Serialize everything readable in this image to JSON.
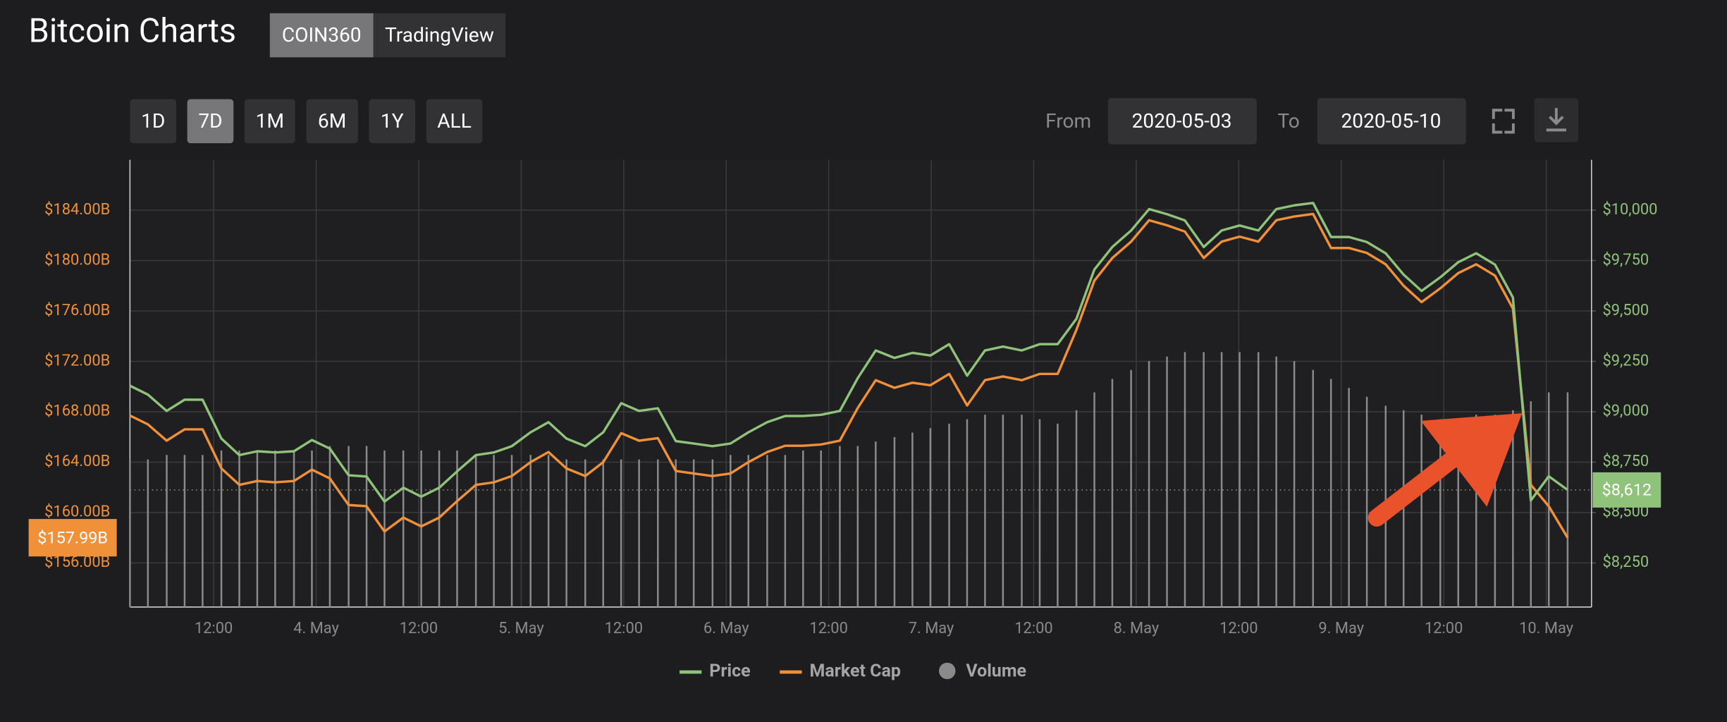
{
  "header": {
    "title": "Bitcoin Charts",
    "sources": [
      "COIN360",
      "TradingView"
    ],
    "active_source": 0
  },
  "ranges": {
    "options": [
      "1D",
      "7D",
      "1M",
      "6M",
      "1Y",
      "ALL"
    ],
    "active": 1
  },
  "date_range": {
    "from_label": "From",
    "from": "2020-05-03",
    "to_label": "To",
    "to": "2020-05-10"
  },
  "chart_data": {
    "type": "line",
    "x": [
      2.2,
      4.3,
      6.5,
      8.6,
      10.7,
      12.9,
      15.0,
      17.1,
      19.2,
      21.4,
      23.5,
      25.6,
      27.8,
      29.9,
      32.0,
      34.2,
      36.3,
      38.4,
      40.5,
      42.7,
      44.8,
      46.9,
      49.1,
      51.2,
      53.3,
      55.5,
      57.6,
      59.7,
      61.8,
      64.0,
      66.1,
      68.2,
      70.4,
      72.5,
      74.6,
      76.8,
      78.9,
      81.0,
      83.1,
      85.3,
      87.4,
      89.5,
      91.7,
      93.8,
      95.9,
      98.1,
      100.2,
      102.3,
      104.4,
      106.6,
      108.7,
      110.8,
      113.0,
      115.1,
      117.2,
      119.4,
      121.5,
      123.6,
      125.7,
      127.9,
      130.0,
      132.1,
      134.3,
      136.4,
      138.5,
      140.7,
      142.8,
      144.9,
      147.0,
      149.2,
      151.3,
      153.4,
      155.6,
      157.7,
      159.8,
      162.0,
      164.1,
      166.2,
      168.3,
      170.5
    ],
    "xlim": [
      2.2,
      173.3
    ],
    "xticks": [
      {
        "value": 12,
        "label": "12:00"
      },
      {
        "value": 24,
        "label": "4. May"
      },
      {
        "value": 36,
        "label": "12:00"
      },
      {
        "value": 48,
        "label": "5. May"
      },
      {
        "value": 60,
        "label": "12:00"
      },
      {
        "value": 72,
        "label": "6. May"
      },
      {
        "value": 84,
        "label": "12:00"
      },
      {
        "value": 96,
        "label": "7. May"
      },
      {
        "value": 108,
        "label": "12:00"
      },
      {
        "value": 120,
        "label": "8. May"
      },
      {
        "value": 132,
        "label": "12:00"
      },
      {
        "value": 144,
        "label": "9. May"
      },
      {
        "value": 156,
        "label": "12:00"
      },
      {
        "value": 168,
        "label": "10. May"
      }
    ],
    "ylim": [
      152.5,
      188
    ],
    "yticks": [
      {
        "value": 156,
        "label": "$156.00B"
      },
      {
        "value": 160,
        "label": "$160.00B"
      },
      {
        "value": 164,
        "label": "$164.00B"
      },
      {
        "value": 168,
        "label": "$168.00B"
      },
      {
        "value": 172,
        "label": "$172.00B"
      },
      {
        "value": 176,
        "label": "$176.00B"
      },
      {
        "value": 180,
        "label": "$180.00B"
      },
      {
        "value": 184,
        "label": "$184.00B"
      }
    ],
    "y2lim": [
      8031.25,
      10250
    ],
    "y2ticks": [
      {
        "value": 8250,
        "label": "$8,250"
      },
      {
        "value": 8500,
        "label": "$8,500"
      },
      {
        "value": 8750,
        "label": "$8,750"
      },
      {
        "value": 9000,
        "label": "$9,000"
      },
      {
        "value": 9250,
        "label": "$9,250"
      },
      {
        "value": 9500,
        "label": "$9,500"
      },
      {
        "value": 9750,
        "label": "$9,750"
      },
      {
        "value": 10000,
        "label": "$10,000"
      }
    ],
    "y3lim": [
      0,
      100
    ],
    "grid": true,
    "series": [
      {
        "name": "Price",
        "color": "#8fc27a",
        "axis": "y2",
        "last_label": "$8,612",
        "values": [
          9129,
          9085,
          9004,
          9060,
          9060,
          8867,
          8785,
          8804,
          8798,
          8804,
          8860,
          8817,
          8685,
          8679,
          8554,
          8623,
          8579,
          8623,
          8704,
          8785,
          8798,
          8829,
          8898,
          8948,
          8867,
          8829,
          8898,
          9042,
          9004,
          9017,
          8854,
          8842,
          8829,
          8842,
          8898,
          8948,
          8979,
          8979,
          8985,
          9004,
          9167,
          9304,
          9267,
          9292,
          9279,
          9335,
          9179,
          9304,
          9323,
          9304,
          9335,
          9335,
          9461,
          9705,
          9817,
          9899,
          10005,
          9980,
          9949,
          9817,
          9899,
          9924,
          9899,
          10005,
          10024,
          10036,
          9867,
          9867,
          9842,
          9786,
          9680,
          9599,
          9667,
          9742,
          9786,
          9730,
          9567,
          8560,
          8680,
          8612
        ]
      },
      {
        "name": "Market Cap",
        "color": "#f0913a",
        "last_label": "$157.99B",
        "values": [
          167.7,
          167.0,
          165.7,
          166.6,
          166.6,
          163.5,
          162.2,
          162.5,
          162.4,
          162.5,
          163.4,
          162.7,
          160.6,
          160.5,
          158.5,
          159.6,
          158.9,
          159.6,
          160.9,
          162.2,
          162.4,
          162.9,
          164.0,
          164.8,
          163.5,
          162.9,
          164.0,
          166.3,
          165.7,
          165.9,
          163.3,
          163.1,
          162.9,
          163.1,
          164.0,
          164.8,
          165.3,
          165.3,
          165.4,
          165.7,
          168.3,
          170.5,
          169.9,
          170.3,
          170.1,
          171.0,
          168.5,
          170.5,
          170.8,
          170.5,
          171.0,
          171.0,
          174.5,
          178.4,
          180.2,
          181.5,
          183.2,
          182.8,
          182.3,
          180.2,
          181.5,
          181.9,
          181.5,
          183.2,
          183.5,
          183.7,
          181.0,
          181.0,
          180.6,
          179.7,
          178.0,
          176.7,
          177.8,
          179.0,
          179.7,
          178.8,
          176.2,
          162.2,
          160.5,
          158.0
        ]
      },
      {
        "name": "Volume",
        "color": "#8a8a8a",
        "axis": "y3",
        "values": [
          33,
          33,
          34,
          34,
          34,
          35,
          35,
          35,
          35,
          35,
          35,
          36,
          36,
          36,
          35,
          35,
          35,
          35,
          35,
          34,
          34,
          34,
          34,
          34,
          33,
          33,
          33,
          33,
          33,
          33,
          33,
          33,
          33,
          34,
          34,
          34,
          34,
          35,
          35,
          36,
          36,
          37,
          38,
          39,
          40,
          41,
          42,
          43,
          43,
          43,
          42,
          41,
          44,
          48,
          51,
          53,
          55,
          56,
          57,
          57,
          57,
          57,
          57,
          56,
          55,
          53,
          51,
          49,
          47,
          45,
          44,
          43,
          42,
          42,
          43,
          43,
          44,
          46,
          48,
          48
        ]
      }
    ]
  }
}
